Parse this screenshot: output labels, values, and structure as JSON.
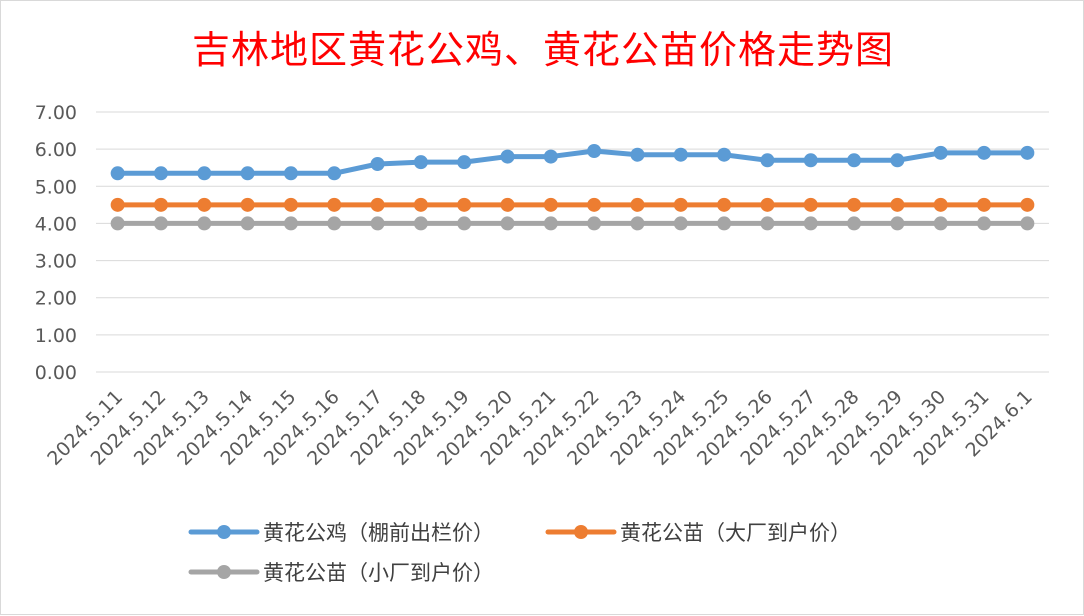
{
  "chart_data": {
    "type": "line",
    "title": "吉林地区黄花公鸡、黄花公苗价格走势图",
    "xlabel": "",
    "ylabel": "",
    "categories": [
      "2024.5.11",
      "2024.5.12",
      "2024.5.13",
      "2024.5.14",
      "2024.5.15",
      "2024.5.16",
      "2024.5.17",
      "2024.5.18",
      "2024.5.19",
      "2024.5.20",
      "2024.5.21",
      "2024.5.22",
      "2024.5.23",
      "2024.5.24",
      "2024.5.25",
      "2024.5.26",
      "2024.5.27",
      "2024.5.28",
      "2024.5.29",
      "2024.5.30",
      "2024.5.31",
      "2024.6.1"
    ],
    "y_ticks": [
      "0.00",
      "1.00",
      "2.00",
      "3.00",
      "4.00",
      "5.00",
      "6.00",
      "7.00"
    ],
    "ylim": [
      0,
      7
    ],
    "grid": true,
    "legend_position": "bottom",
    "series": [
      {
        "name": "黄花公鸡（棚前出栏价）",
        "color": "#5b9bd5",
        "values": [
          5.35,
          5.35,
          5.35,
          5.35,
          5.35,
          5.35,
          5.6,
          5.65,
          5.65,
          5.8,
          5.8,
          5.95,
          5.85,
          5.85,
          5.85,
          5.7,
          5.7,
          5.7,
          5.7,
          5.9,
          5.9,
          5.9
        ]
      },
      {
        "name": "黄花公苗（大厂到户价）",
        "color": "#ed7d31",
        "values": [
          4.5,
          4.5,
          4.5,
          4.5,
          4.5,
          4.5,
          4.5,
          4.5,
          4.5,
          4.5,
          4.5,
          4.5,
          4.5,
          4.5,
          4.5,
          4.5,
          4.5,
          4.5,
          4.5,
          4.5,
          4.5,
          4.5
        ]
      },
      {
        "name": "黄花公苗（小厂到户价）",
        "color": "#a5a5a5",
        "values": [
          4.0,
          4.0,
          4.0,
          4.0,
          4.0,
          4.0,
          4.0,
          4.0,
          4.0,
          4.0,
          4.0,
          4.0,
          4.0,
          4.0,
          4.0,
          4.0,
          4.0,
          4.0,
          4.0,
          4.0,
          4.0,
          4.0
        ]
      }
    ]
  }
}
